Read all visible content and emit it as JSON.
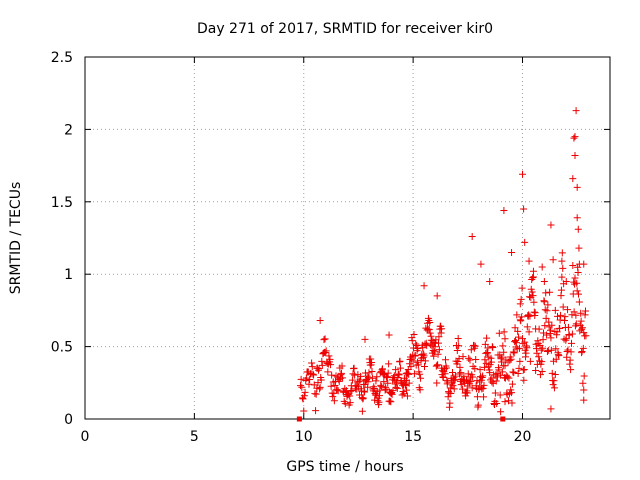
{
  "chart_data": {
    "type": "scatter",
    "title": "Day 271 of 2017, SRMTID for receiver kir0",
    "xlabel": "GPS time / hours",
    "ylabel": "SRMTID / TECUs",
    "xlim": [
      0,
      24
    ],
    "ylim": [
      0,
      2.5
    ],
    "xticks": [
      0,
      5,
      10,
      15,
      20
    ],
    "yticks": [
      0,
      0.5,
      1,
      1.5,
      2,
      2.5
    ],
    "xtick_labels": [
      "0",
      "5",
      "10",
      "15",
      "20"
    ],
    "ytick_labels": [
      "0",
      "0.5",
      "1",
      "1.5",
      "2",
      "2.5"
    ],
    "grid": true,
    "marker": "+",
    "color": "#ee0000",
    "gap_markers": [
      [
        9.8,
        0
      ],
      [
        19.1,
        0
      ]
    ],
    "segments": [
      {
        "x0": 9.85,
        "x1": 10.6,
        "step": 0.03,
        "base": 0.25,
        "amp": 0.08,
        "noise": 0.12
      },
      {
        "x0": 10.6,
        "x1": 11.4,
        "step": 0.025,
        "base": 0.38,
        "amp": 0.12,
        "noise": 0.15
      },
      {
        "x0": 11.4,
        "x1": 12.6,
        "step": 0.025,
        "base": 0.22,
        "amp": 0.06,
        "noise": 0.12
      },
      {
        "x0": 12.6,
        "x1": 14.7,
        "step": 0.02,
        "base": 0.26,
        "amp": 0.07,
        "noise": 0.14
      },
      {
        "x0": 14.7,
        "x1": 15.4,
        "step": 0.02,
        "base": 0.4,
        "amp": 0.1,
        "noise": 0.16
      },
      {
        "x0": 15.4,
        "x1": 16.3,
        "step": 0.02,
        "base": 0.52,
        "amp": 0.1,
        "noise": 0.17
      },
      {
        "x0": 16.3,
        "x1": 17.5,
        "step": 0.02,
        "base": 0.3,
        "amp": 0.08,
        "noise": 0.14
      },
      {
        "x0": 17.5,
        "x1": 18.6,
        "step": 0.02,
        "base": 0.3,
        "amp": 0.1,
        "noise": 0.18
      },
      {
        "x0": 18.6,
        "x1": 19.2,
        "step": 0.02,
        "base": 0.32,
        "amp": 0.12,
        "noise": 0.25
      },
      {
        "x0": 19.2,
        "x1": 19.9,
        "step": 0.02,
        "base": 0.4,
        "amp": 0.15,
        "noise": 0.3
      },
      {
        "x0": 19.9,
        "x1": 20.6,
        "step": 0.02,
        "base": 0.65,
        "amp": 0.18,
        "noise": 0.35
      },
      {
        "x0": 20.6,
        "x1": 21.8,
        "step": 0.02,
        "base": 0.55,
        "amp": 0.18,
        "noise": 0.3
      },
      {
        "x0": 21.8,
        "x1": 22.9,
        "step": 0.02,
        "base": 0.7,
        "amp": 0.2,
        "noise": 0.35
      }
    ],
    "outliers": [
      [
        10.75,
        0.68
      ],
      [
        12.8,
        0.55
      ],
      [
        13.9,
        0.58
      ],
      [
        15.5,
        0.92
      ],
      [
        16.1,
        0.85
      ],
      [
        17.7,
        1.26
      ],
      [
        18.1,
        1.07
      ],
      [
        18.5,
        0.95
      ],
      [
        19.15,
        1.44
      ],
      [
        19.5,
        1.15
      ],
      [
        20.0,
        1.69
      ],
      [
        20.05,
        1.45
      ],
      [
        20.1,
        1.22
      ],
      [
        20.3,
        1.09
      ],
      [
        20.5,
        1.02
      ],
      [
        21.0,
        0.95
      ],
      [
        21.3,
        1.34
      ],
      [
        21.4,
        1.1
      ],
      [
        21.5,
        0.75
      ],
      [
        22.0,
        0.95
      ],
      [
        22.3,
        1.66
      ],
      [
        22.35,
        1.94
      ],
      [
        22.4,
        1.95
      ],
      [
        22.45,
        2.13
      ],
      [
        22.4,
        1.82
      ],
      [
        22.5,
        1.6
      ],
      [
        22.5,
        1.39
      ],
      [
        22.55,
        1.31
      ],
      [
        22.6,
        1.07
      ],
      [
        22.7,
        0.62
      ],
      [
        22.8,
        0.2
      ],
      [
        22.8,
        0.13
      ],
      [
        21.3,
        0.07
      ],
      [
        19.0,
        0.05
      ],
      [
        19.2,
        0.12
      ],
      [
        22.8,
        1.07
      ],
      [
        20.9,
        1.05
      ]
    ]
  }
}
